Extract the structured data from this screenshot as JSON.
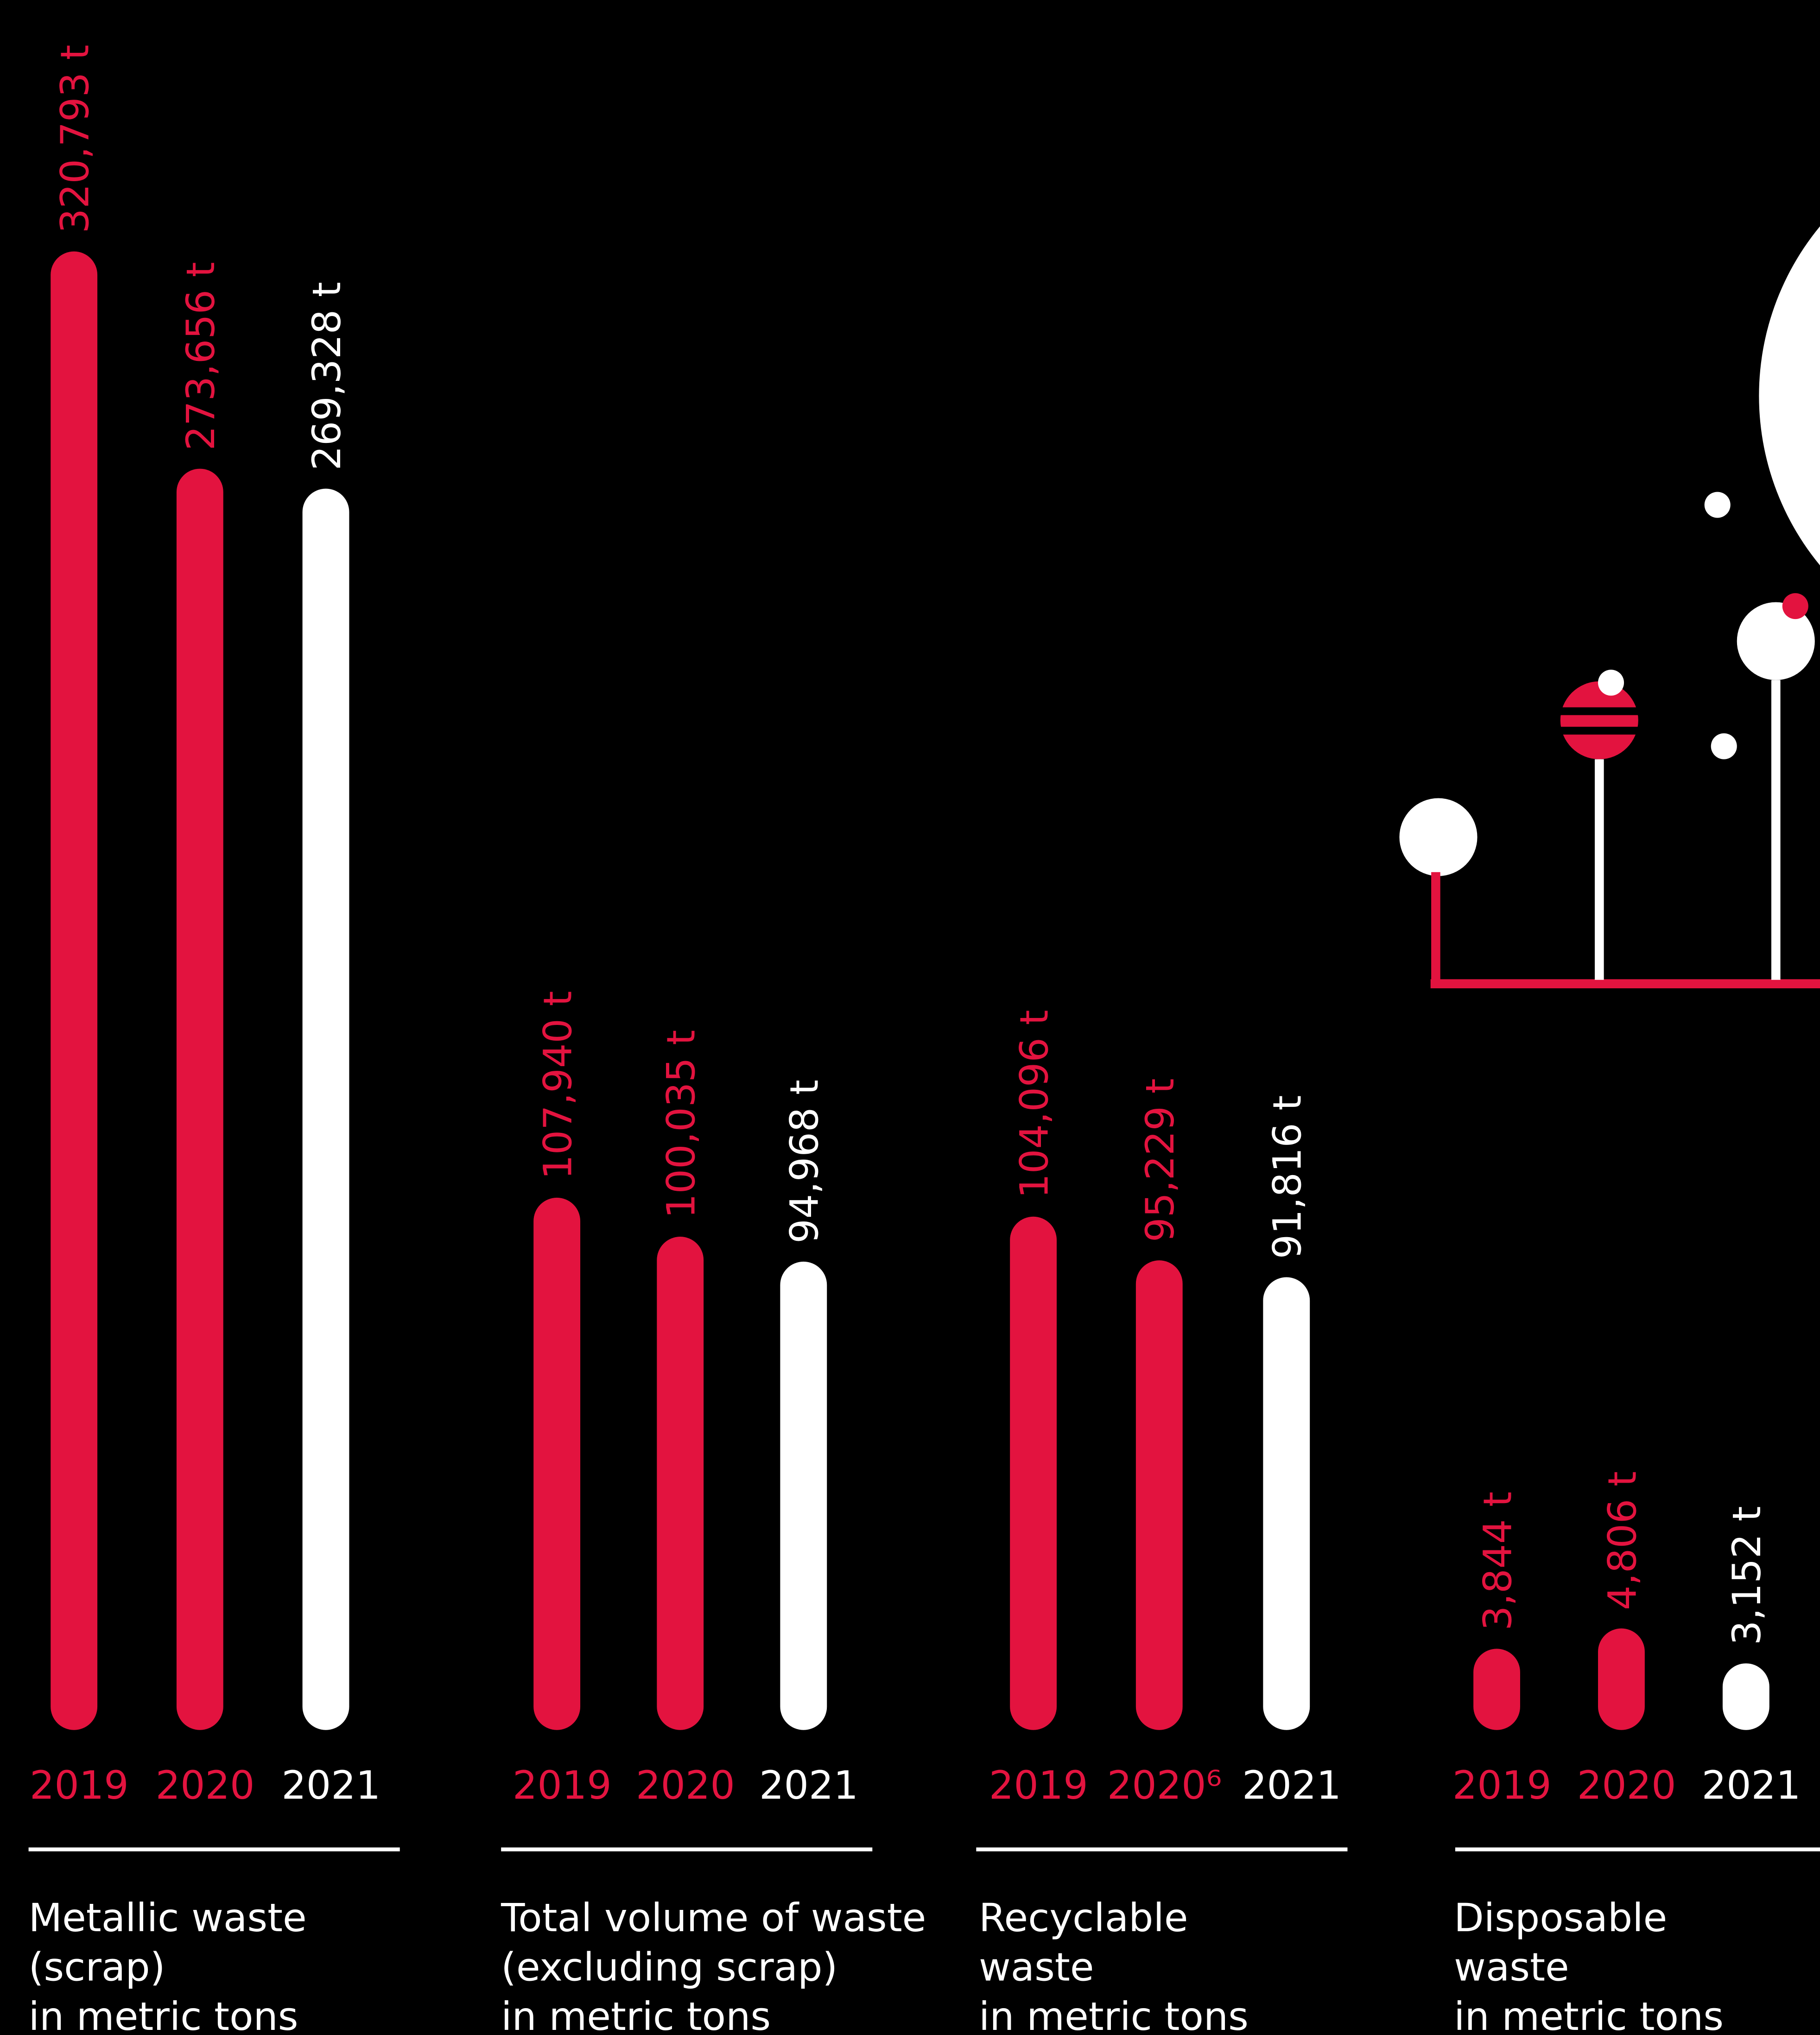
{
  "chart_data": [
    {
      "type": "bar",
      "title": [
        "Metallic waste",
        "(scrap)"
      ],
      "subtitle": "in metric tons",
      "categories": [
        "2019",
        "2020",
        "2021"
      ],
      "values": [
        320793,
        273656,
        269328
      ],
      "value_labels": [
        "320,793 t",
        "273,656 t",
        "269,328 t"
      ],
      "colors": [
        "#e3133f",
        "#e3133f",
        "#ffffff"
      ],
      "ylim": [
        0,
        321000
      ]
    },
    {
      "type": "bar",
      "title": [
        "Total volume of waste",
        "(excluding scrap)"
      ],
      "subtitle": "in metric tons",
      "categories": [
        "2019",
        "2020",
        "2021"
      ],
      "values": [
        107940,
        100035,
        94968
      ],
      "value_labels": [
        "107,940 t",
        "100,035 t",
        "94,968 t"
      ],
      "colors": [
        "#e3133f",
        "#e3133f",
        "#ffffff"
      ],
      "ylim": [
        0,
        300000
      ]
    },
    {
      "type": "bar",
      "title": [
        "Recyclable",
        "waste"
      ],
      "subtitle": "in metric tons",
      "categories": [
        "2019",
        "2020⁶",
        "2021"
      ],
      "values": [
        104096,
        95229,
        91816
      ],
      "value_labels": [
        "104,096 t",
        "95,229 t",
        "91,816 t"
      ],
      "colors": [
        "#e3133f",
        "#e3133f",
        "#ffffff"
      ],
      "ylim": [
        0,
        300000
      ]
    },
    {
      "type": "bar",
      "title": [
        "Disposable",
        "waste"
      ],
      "subtitle": "in metric tons",
      "categories": [
        "2019",
        "2020",
        "2021"
      ],
      "values": [
        3844,
        4806,
        3152
      ],
      "value_labels": [
        "3,844 t",
        "4,806 t",
        "3,152 t"
      ],
      "colors": [
        "#e3133f",
        "#e3133f",
        "#ffffff"
      ],
      "ylim": [
        0,
        70000
      ]
    }
  ]
}
